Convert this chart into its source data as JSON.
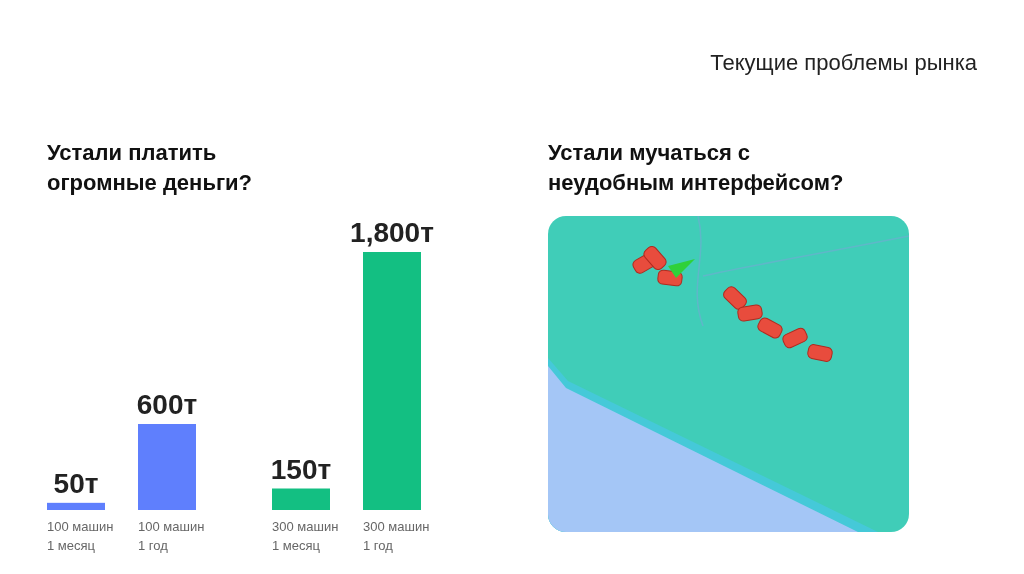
{
  "chart_data": [
    {
      "type": "other",
      "title": "Текущие проблемы рынка"
    },
    {
      "type": "bar",
      "title": "Устали платить огромные деньги?",
      "categories": [
        "100 машин 1 месяц",
        "100 машин 1 год",
        "300 машин 1 месяц",
        "300 машин 1 год"
      ],
      "values": [
        50,
        600,
        150,
        1800
      ],
      "colors": [
        "#5f7ffd",
        "#5f7ffd",
        "#13bf82",
        "#13bf82"
      ],
      "value_labels": [
        "50т",
        "600т",
        "150т",
        "1,800т"
      ]
    },
    {
      "type": "other",
      "title": "Устали мучаться с неудобным интерфейсом?"
    }
  ]
}
